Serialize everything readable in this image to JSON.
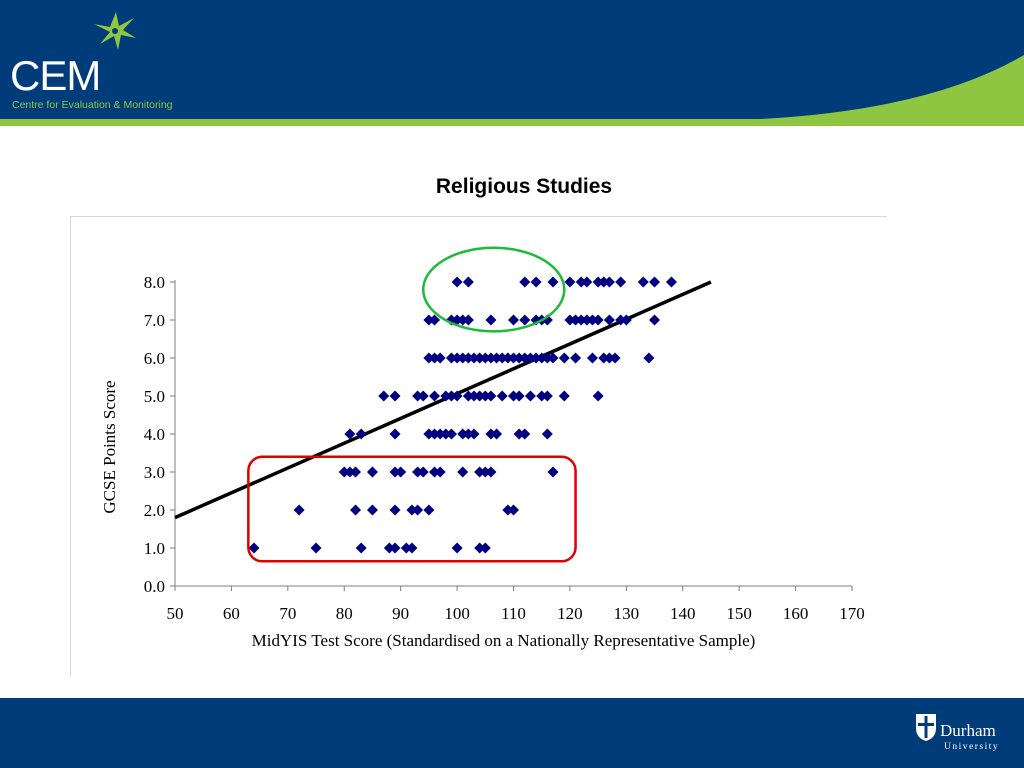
{
  "header": {
    "logo_text": "CEM",
    "logo_subtitle": "Centre for Evaluation & Monitoring",
    "bg_color": "#003b7a",
    "accent_color": "#8fc641"
  },
  "footer": {
    "university_name": "Durham",
    "university_sub": "University",
    "bg_color": "#003b7a"
  },
  "chart_data": {
    "type": "scatter",
    "title": "Religious Studies",
    "xlabel": "MidYIS Test Score (Standardised on a Nationally Representative Sample)",
    "ylabel": "GCSE Points Score",
    "xlim": [
      50,
      170
    ],
    "ylim": [
      0,
      8
    ],
    "x_ticks": [
      "50",
      "60",
      "70",
      "80",
      "90",
      "100",
      "110",
      "120",
      "130",
      "140",
      "150",
      "160",
      "170"
    ],
    "y_ticks": [
      "0.0",
      "1.0",
      "2.0",
      "3.0",
      "4.0",
      "5.0",
      "6.0",
      "7.0",
      "8.0"
    ],
    "marker_color": "#000080",
    "trend_line": {
      "x": [
        50,
        145
      ],
      "y": [
        1.8,
        8.0
      ],
      "color": "#000000"
    },
    "series": [
      {
        "name": "Students",
        "points": [
          [
            64,
            1
          ],
          [
            75,
            1
          ],
          [
            83,
            1
          ],
          [
            88,
            1
          ],
          [
            89,
            1
          ],
          [
            91,
            1
          ],
          [
            92,
            1
          ],
          [
            100,
            1
          ],
          [
            104,
            1
          ],
          [
            105,
            1
          ],
          [
            72,
            2
          ],
          [
            82,
            2
          ],
          [
            85,
            2
          ],
          [
            89,
            2
          ],
          [
            92,
            2
          ],
          [
            93,
            2
          ],
          [
            95,
            2
          ],
          [
            109,
            2
          ],
          [
            110,
            2
          ],
          [
            80,
            3
          ],
          [
            81,
            3
          ],
          [
            82,
            3
          ],
          [
            85,
            3
          ],
          [
            89,
            3
          ],
          [
            90,
            3
          ],
          [
            93,
            3
          ],
          [
            94,
            3
          ],
          [
            96,
            3
          ],
          [
            97,
            3
          ],
          [
            101,
            3
          ],
          [
            104,
            3
          ],
          [
            105,
            3
          ],
          [
            106,
            3
          ],
          [
            117,
            3
          ],
          [
            81,
            4
          ],
          [
            83,
            4
          ],
          [
            89,
            4
          ],
          [
            95,
            4
          ],
          [
            96,
            4
          ],
          [
            97,
            4
          ],
          [
            98,
            4
          ],
          [
            99,
            4
          ],
          [
            101,
            4
          ],
          [
            102,
            4
          ],
          [
            103,
            4
          ],
          [
            106,
            4
          ],
          [
            107,
            4
          ],
          [
            111,
            4
          ],
          [
            112,
            4
          ],
          [
            116,
            4
          ],
          [
            87,
            5
          ],
          [
            89,
            5
          ],
          [
            93,
            5
          ],
          [
            94,
            5
          ],
          [
            96,
            5
          ],
          [
            98,
            5
          ],
          [
            99,
            5
          ],
          [
            100,
            5
          ],
          [
            102,
            5
          ],
          [
            103,
            5
          ],
          [
            104,
            5
          ],
          [
            105,
            5
          ],
          [
            106,
            5
          ],
          [
            108,
            5
          ],
          [
            110,
            5
          ],
          [
            111,
            5
          ],
          [
            113,
            5
          ],
          [
            115,
            5
          ],
          [
            116,
            5
          ],
          [
            119,
            5
          ],
          [
            125,
            5
          ],
          [
            95,
            6
          ],
          [
            96,
            6
          ],
          [
            97,
            6
          ],
          [
            99,
            6
          ],
          [
            100,
            6
          ],
          [
            101,
            6
          ],
          [
            102,
            6
          ],
          [
            103,
            6
          ],
          [
            104,
            6
          ],
          [
            105,
            6
          ],
          [
            106,
            6
          ],
          [
            107,
            6
          ],
          [
            108,
            6
          ],
          [
            109,
            6
          ],
          [
            110,
            6
          ],
          [
            111,
            6
          ],
          [
            112,
            6
          ],
          [
            113,
            6
          ],
          [
            114,
            6
          ],
          [
            115,
            6
          ],
          [
            116,
            6
          ],
          [
            117,
            6
          ],
          [
            119,
            6
          ],
          [
            121,
            6
          ],
          [
            124,
            6
          ],
          [
            126,
            6
          ],
          [
            127,
            6
          ],
          [
            128,
            6
          ],
          [
            134,
            6
          ],
          [
            95,
            7
          ],
          [
            96,
            7
          ],
          [
            99,
            7
          ],
          [
            100,
            7
          ],
          [
            101,
            7
          ],
          [
            102,
            7
          ],
          [
            106,
            7
          ],
          [
            110,
            7
          ],
          [
            112,
            7
          ],
          [
            114,
            7
          ],
          [
            115,
            7
          ],
          [
            116,
            7
          ],
          [
            120,
            7
          ],
          [
            121,
            7
          ],
          [
            122,
            7
          ],
          [
            123,
            7
          ],
          [
            124,
            7
          ],
          [
            125,
            7
          ],
          [
            127,
            7
          ],
          [
            129,
            7
          ],
          [
            130,
            7
          ],
          [
            135,
            7
          ],
          [
            100,
            8
          ],
          [
            102,
            8
          ],
          [
            112,
            8
          ],
          [
            114,
            8
          ],
          [
            117,
            8
          ],
          [
            120,
            8
          ],
          [
            122,
            8
          ],
          [
            123,
            8
          ],
          [
            125,
            8
          ],
          [
            126,
            8
          ],
          [
            127,
            8
          ],
          [
            129,
            8
          ],
          [
            133,
            8
          ],
          [
            135,
            8
          ],
          [
            138,
            8
          ]
        ]
      }
    ],
    "annotations": [
      {
        "shape": "ellipse",
        "color": "#1fba3c",
        "x_range": [
          94,
          119
        ],
        "y_range": [
          6.7,
          8.9
        ]
      },
      {
        "shape": "rounded-rect",
        "color": "#e00000",
        "x_range": [
          63,
          121
        ],
        "y_range": [
          0.65,
          3.4
        ]
      }
    ]
  }
}
